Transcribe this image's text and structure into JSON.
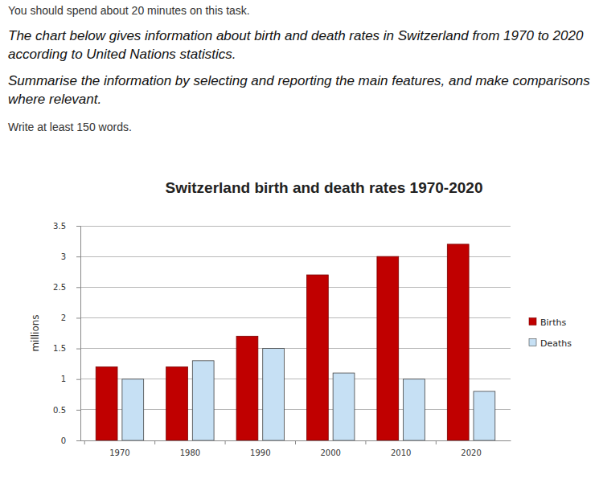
{
  "task": {
    "time_note": "You should spend about 20 minutes on this task.",
    "prompt": "The chart below gives information about birth and death rates in Switzerland from 1970 to 2020 according to United Nations statistics.",
    "instruction": "Summarise the information by selecting and reporting the main features, and make comparisons where relevant.",
    "word_note": "Write at least 150 words."
  },
  "chart_data": {
    "type": "bar",
    "title": "Switzerland birth and death rates 1970-2020",
    "y_label": "millions",
    "categories": [
      "1970",
      "1980",
      "1990",
      "2000",
      "2010",
      "2020"
    ],
    "series": [
      {
        "name": "Births",
        "color": "#c00000",
        "values": [
          1.2,
          1.2,
          1.7,
          2.7,
          3.0,
          3.2
        ]
      },
      {
        "name": "Deaths",
        "color": "#c6e0f4",
        "values": [
          1.0,
          1.3,
          1.5,
          1.1,
          1.0,
          0.8
        ]
      }
    ],
    "ylim": [
      0,
      3.5
    ],
    "yticks": [
      0,
      0.5,
      1,
      1.5,
      2,
      2.5,
      3,
      3.5
    ],
    "grid": true,
    "legend": "right"
  }
}
